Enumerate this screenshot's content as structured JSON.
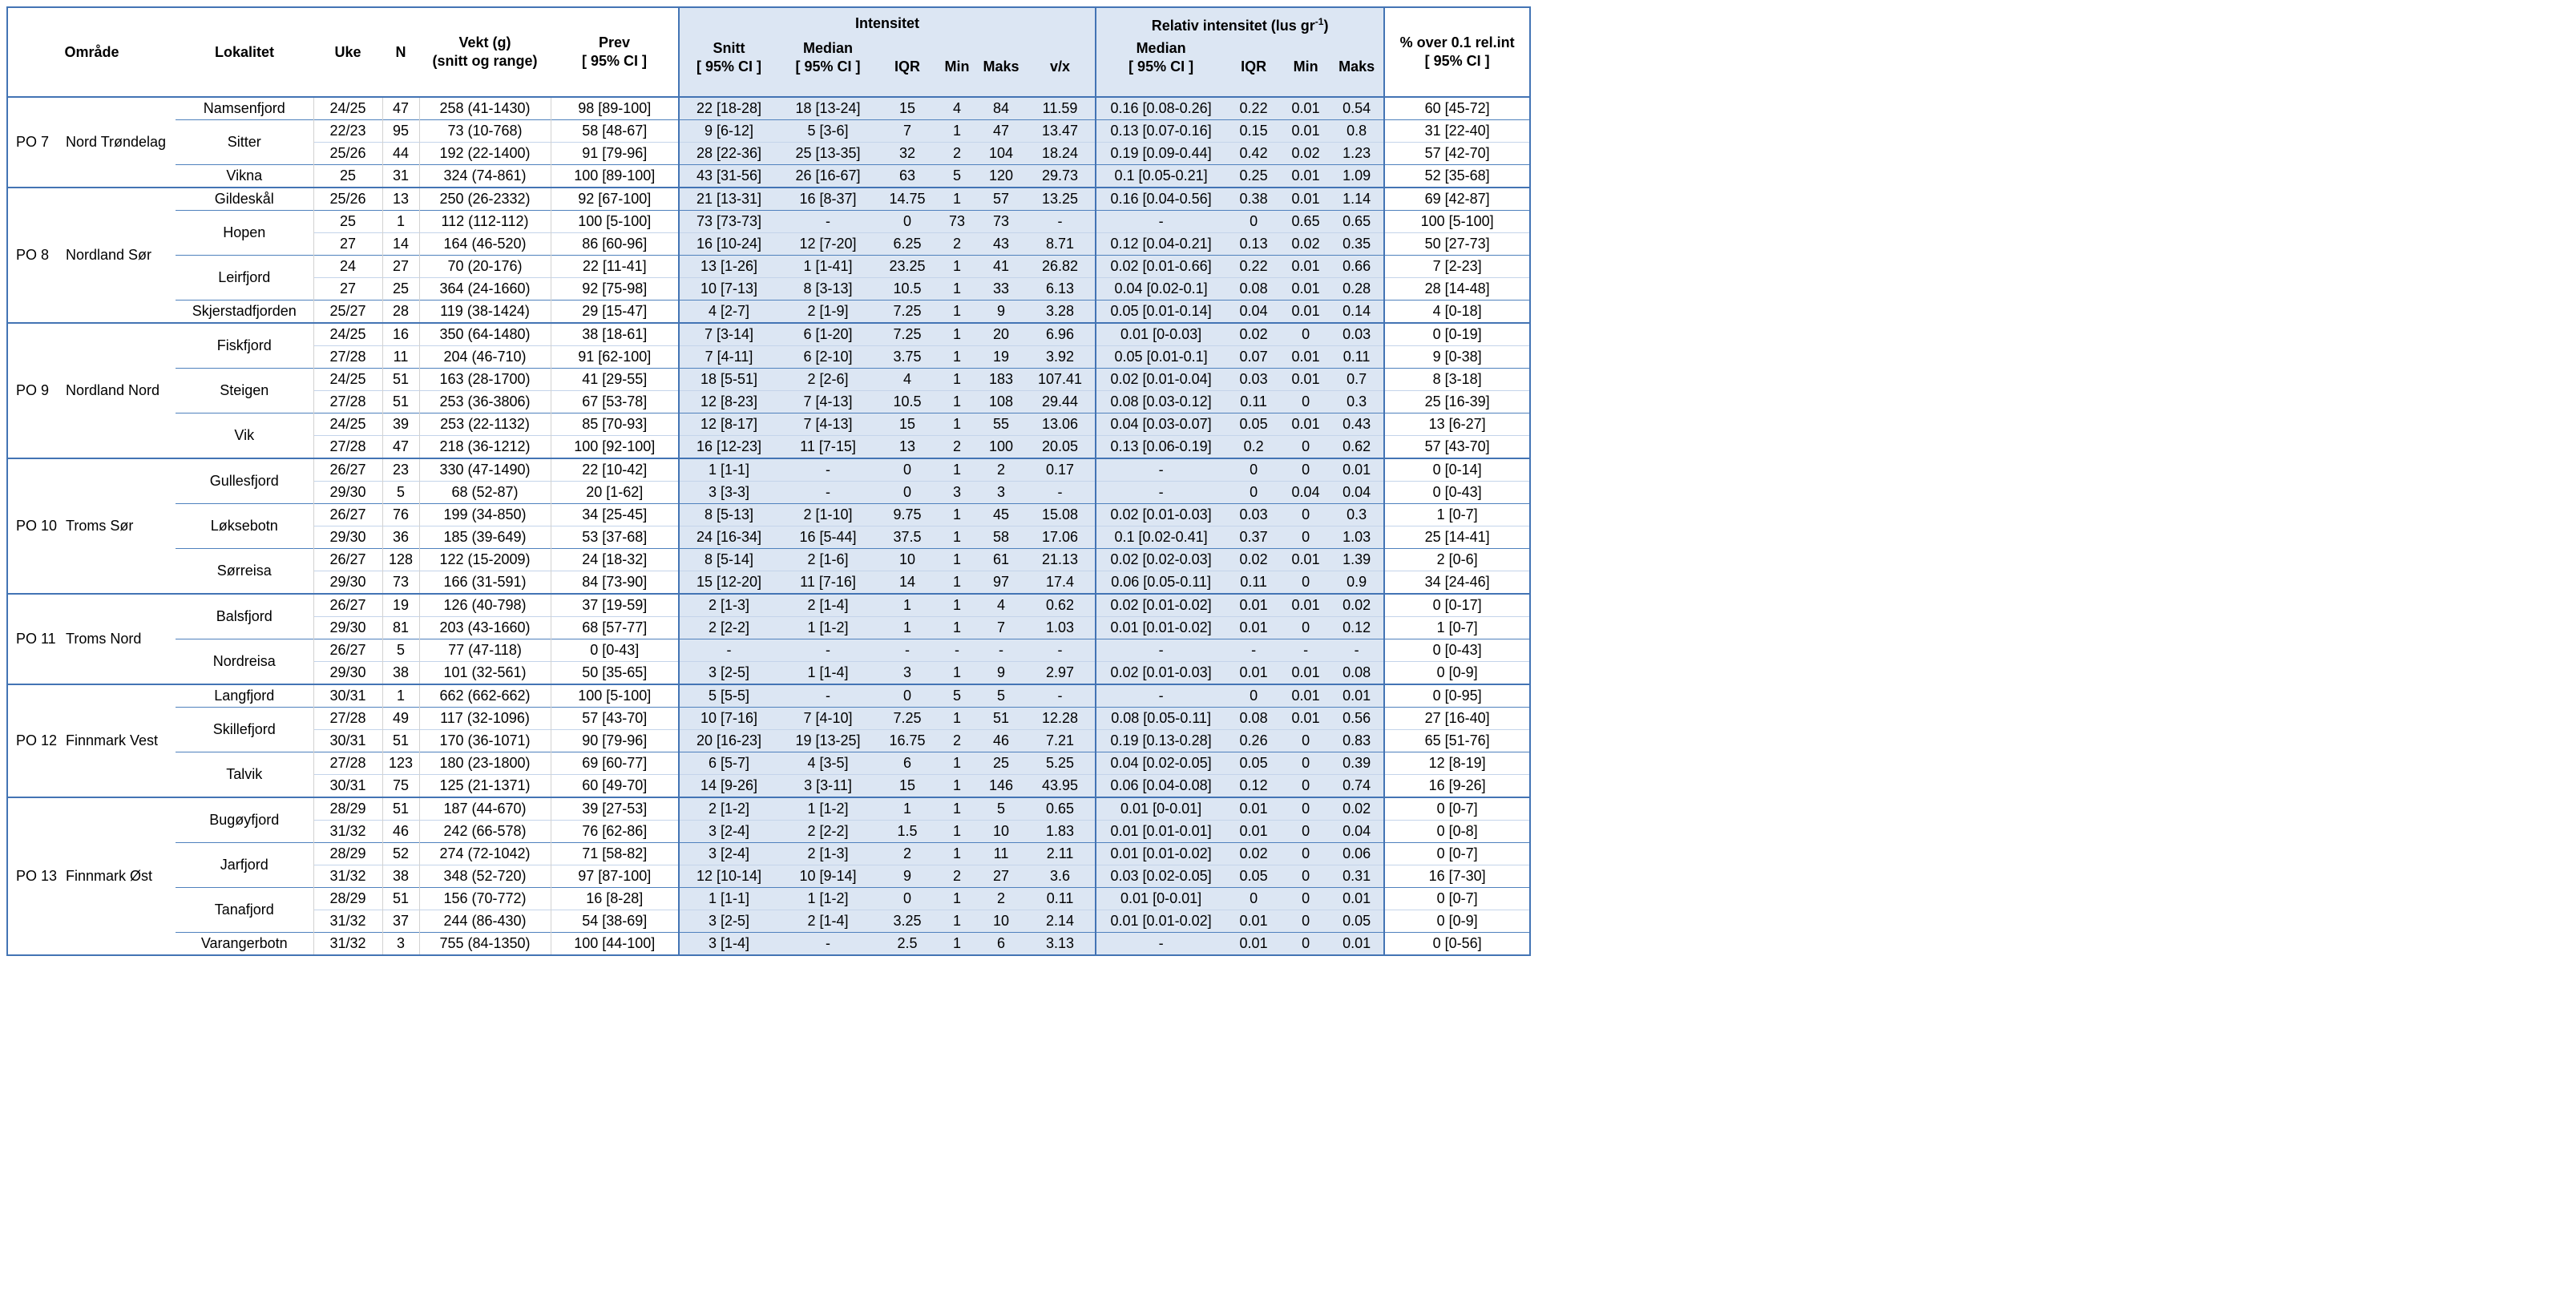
{
  "colors": {
    "region_fill": "#dce6f3",
    "border_strong": "#4374b4",
    "border_locality": "#4f81bd",
    "border_light_blue": "#c4d4ea",
    "border_light_gray": "#d2d2d2"
  },
  "table": {
    "headers": {
      "omrade": "Område",
      "lokalitet": "Lokalitet",
      "uke": "Uke",
      "n": "N",
      "vekt_line1": "Vekt (g)",
      "vekt_line2": "(snitt og range)",
      "prev_line1": "Prev",
      "prev_line2": "[ 95% CI ]",
      "intensitet_group": "Intensitet",
      "rel_group_prefix": "Relativ intensitet (lus gr",
      "rel_group_sup": "-1",
      "rel_group_suffix": ")",
      "snitt_line1": "Snitt",
      "snitt_line2": "[ 95% CI ]",
      "median_line1": "Median",
      "median_line2": "[ 95% CI ]",
      "iqr": "IQR",
      "min": "Min",
      "maks": "Maks",
      "vx": "v/x",
      "rel_median_line1": "Median",
      "rel_median_line2": "[ 95% CI ]",
      "rel_iqr": "IQR",
      "rel_min": "Min",
      "rel_maks": "Maks",
      "pct_line1": "% over 0.1 rel.int",
      "pct_line2": "[ 95% CI ]"
    },
    "col_keys": [
      "uke",
      "n",
      "vekt",
      "prev",
      "int-snitt",
      "int-median",
      "int-iqr",
      "int-min",
      "int-maks",
      "vx",
      "rel-median",
      "rel-iqr",
      "rel-min",
      "rel-maks",
      "pct-over"
    ],
    "groups": [
      {
        "po": "PO 7",
        "name": "Nord Trøndelag",
        "localities": [
          {
            "name": "Namsenfjord",
            "rows": [
              [
                "24/25",
                "47",
                "258 (41-1430)",
                "98 [89-100]",
                "22 [18-28]",
                "18 [13-24]",
                "15",
                "4",
                "84",
                "11.59",
                "0.16 [0.08-0.26]",
                "0.22",
                "0.01",
                "0.54",
                "60 [45-72]"
              ]
            ]
          },
          {
            "name": "Sitter",
            "rows": [
              [
                "22/23",
                "95",
                "73 (10-768)",
                "58 [48-67]",
                "9 [6-12]",
                "5 [3-6]",
                "7",
                "1",
                "47",
                "13.47",
                "0.13 [0.07-0.16]",
                "0.15",
                "0.01",
                "0.8",
                "31 [22-40]"
              ],
              [
                "25/26",
                "44",
                "192 (22-1400)",
                "91 [79-96]",
                "28 [22-36]",
                "25 [13-35]",
                "32",
                "2",
                "104",
                "18.24",
                "0.19 [0.09-0.44]",
                "0.42",
                "0.02",
                "1.23",
                "57 [42-70]"
              ]
            ]
          },
          {
            "name": "Vikna",
            "rows": [
              [
                "25",
                "31",
                "324 (74-861)",
                "100 [89-100]",
                "43 [31-56]",
                "26 [16-67]",
                "63",
                "5",
                "120",
                "29.73",
                "0.1 [0.05-0.21]",
                "0.25",
                "0.01",
                "1.09",
                "52 [35-68]"
              ]
            ]
          }
        ]
      },
      {
        "po": "PO 8",
        "name": "Nordland Sør",
        "localities": [
          {
            "name": "Gildeskål",
            "rows": [
              [
                "25/26",
                "13",
                "250 (26-2332)",
                "92 [67-100]",
                "21 [13-31]",
                "16 [8-37]",
                "14.75",
                "1",
                "57",
                "13.25",
                "0.16 [0.04-0.56]",
                "0.38",
                "0.01",
                "1.14",
                "69 [42-87]"
              ]
            ]
          },
          {
            "name": "Hopen",
            "rows": [
              [
                "25",
                "1",
                "112 (112-112)",
                "100 [5-100]",
                "73 [73-73]",
                "-",
                "0",
                "73",
                "73",
                "-",
                "-",
                "0",
                "0.65",
                "0.65",
                "100 [5-100]"
              ],
              [
                "27",
                "14",
                "164 (46-520)",
                "86 [60-96]",
                "16 [10-24]",
                "12 [7-20]",
                "6.25",
                "2",
                "43",
                "8.71",
                "0.12 [0.04-0.21]",
                "0.13",
                "0.02",
                "0.35",
                "50 [27-73]"
              ]
            ]
          },
          {
            "name": "Leirfjord",
            "rows": [
              [
                "24",
                "27",
                "70 (20-176)",
                "22 [11-41]",
                "13 [1-26]",
                "1 [1-41]",
                "23.25",
                "1",
                "41",
                "26.82",
                "0.02 [0.01-0.66]",
                "0.22",
                "0.01",
                "0.66",
                "7 [2-23]"
              ],
              [
                "27",
                "25",
                "364 (24-1660)",
                "92 [75-98]",
                "10 [7-13]",
                "8 [3-13]",
                "10.5",
                "1",
                "33",
                "6.13",
                "0.04 [0.02-0.1]",
                "0.08",
                "0.01",
                "0.28",
                "28 [14-48]"
              ]
            ]
          },
          {
            "name": "Skjerstadfjorden",
            "rows": [
              [
                "25/27",
                "28",
                "119 (38-1424)",
                "29 [15-47]",
                "4 [2-7]",
                "2 [1-9]",
                "7.25",
                "1",
                "9",
                "3.28",
                "0.05 [0.01-0.14]",
                "0.04",
                "0.01",
                "0.14",
                "4 [0-18]"
              ]
            ]
          }
        ]
      },
      {
        "po": "PO 9",
        "name": "Nordland Nord",
        "localities": [
          {
            "name": "Fiskfjord",
            "rows": [
              [
                "24/25",
                "16",
                "350 (64-1480)",
                "38 [18-61]",
                "7 [3-14]",
                "6 [1-20]",
                "7.25",
                "1",
                "20",
                "6.96",
                "0.01 [0-0.03]",
                "0.02",
                "0",
                "0.03",
                "0 [0-19]"
              ],
              [
                "27/28",
                "11",
                "204 (46-710)",
                "91 [62-100]",
                "7 [4-11]",
                "6 [2-10]",
                "3.75",
                "1",
                "19",
                "3.92",
                "0.05 [0.01-0.1]",
                "0.07",
                "0.01",
                "0.11",
                "9 [0-38]"
              ]
            ]
          },
          {
            "name": "Steigen",
            "rows": [
              [
                "24/25",
                "51",
                "163 (28-1700)",
                "41 [29-55]",
                "18 [5-51]",
                "2 [2-6]",
                "4",
                "1",
                "183",
                "107.41",
                "0.02 [0.01-0.04]",
                "0.03",
                "0.01",
                "0.7",
                "8 [3-18]"
              ],
              [
                "27/28",
                "51",
                "253 (36-3806)",
                "67 [53-78]",
                "12 [8-23]",
                "7 [4-13]",
                "10.5",
                "1",
                "108",
                "29.44",
                "0.08 [0.03-0.12]",
                "0.11",
                "0",
                "0.3",
                "25 [16-39]"
              ]
            ]
          },
          {
            "name": "Vik",
            "rows": [
              [
                "24/25",
                "39",
                "253 (22-1132)",
                "85 [70-93]",
                "12 [8-17]",
                "7 [4-13]",
                "15",
                "1",
                "55",
                "13.06",
                "0.04 [0.03-0.07]",
                "0.05",
                "0.01",
                "0.43",
                "13 [6-27]"
              ],
              [
                "27/28",
                "47",
                "218 (36-1212)",
                "100 [92-100]",
                "16 [12-23]",
                "11 [7-15]",
                "13",
                "2",
                "100",
                "20.05",
                "0.13 [0.06-0.19]",
                "0.2",
                "0",
                "0.62",
                "57 [43-70]"
              ]
            ]
          }
        ]
      },
      {
        "po": "PO 10",
        "name": "Troms Sør",
        "localities": [
          {
            "name": "Gullesfjord",
            "rows": [
              [
                "26/27",
                "23",
                "330 (47-1490)",
                "22 [10-42]",
                "1 [1-1]",
                "-",
                "0",
                "1",
                "2",
                "0.17",
                "-",
                "0",
                "0",
                "0.01",
                "0 [0-14]"
              ],
              [
                "29/30",
                "5",
                "68 (52-87)",
                "20 [1-62]",
                "3 [3-3]",
                "-",
                "0",
                "3",
                "3",
                "-",
                "-",
                "0",
                "0.04",
                "0.04",
                "0 [0-43]"
              ]
            ]
          },
          {
            "name": "Løksebotn",
            "rows": [
              [
                "26/27",
                "76",
                "199 (34-850)",
                "34 [25-45]",
                "8 [5-13]",
                "2 [1-10]",
                "9.75",
                "1",
                "45",
                "15.08",
                "0.02 [0.01-0.03]",
                "0.03",
                "0",
                "0.3",
                "1 [0-7]"
              ],
              [
                "29/30",
                "36",
                "185 (39-649)",
                "53 [37-68]",
                "24 [16-34]",
                "16 [5-44]",
                "37.5",
                "1",
                "58",
                "17.06",
                "0.1 [0.02-0.41]",
                "0.37",
                "0",
                "1.03",
                "25 [14-41]"
              ]
            ]
          },
          {
            "name": "Sørreisa",
            "rows": [
              [
                "26/27",
                "128",
                "122 (15-2009)",
                "24 [18-32]",
                "8 [5-14]",
                "2 [1-6]",
                "10",
                "1",
                "61",
                "21.13",
                "0.02 [0.02-0.03]",
                "0.02",
                "0.01",
                "1.39",
                "2 [0-6]"
              ],
              [
                "29/30",
                "73",
                "166 (31-591)",
                "84 [73-90]",
                "15 [12-20]",
                "11 [7-16]",
                "14",
                "1",
                "97",
                "17.4",
                "0.06 [0.05-0.11]",
                "0.11",
                "0",
                "0.9",
                "34 [24-46]"
              ]
            ]
          }
        ]
      },
      {
        "po": "PO 11",
        "name": "Troms Nord",
        "localities": [
          {
            "name": "Balsfjord",
            "rows": [
              [
                "26/27",
                "19",
                "126 (40-798)",
                "37 [19-59]",
                "2 [1-3]",
                "2 [1-4]",
                "1",
                "1",
                "4",
                "0.62",
                "0.02 [0.01-0.02]",
                "0.01",
                "0.01",
                "0.02",
                "0 [0-17]"
              ],
              [
                "29/30",
                "81",
                "203 (43-1660)",
                "68 [57-77]",
                "2 [2-2]",
                "1 [1-2]",
                "1",
                "1",
                "7",
                "1.03",
                "0.01 [0.01-0.02]",
                "0.01",
                "0",
                "0.12",
                "1 [0-7]"
              ]
            ]
          },
          {
            "name": "Nordreisa",
            "rows": [
              [
                "26/27",
                "5",
                "77 (47-118)",
                "0 [0-43]",
                "-",
                "-",
                "-",
                "-",
                "-",
                "-",
                "-",
                "-",
                "-",
                "-",
                "0 [0-43]"
              ],
              [
                "29/30",
                "38",
                "101 (32-561)",
                "50 [35-65]",
                "3 [2-5]",
                "1 [1-4]",
                "3",
                "1",
                "9",
                "2.97",
                "0.02 [0.01-0.03]",
                "0.01",
                "0.01",
                "0.08",
                "0 [0-9]"
              ]
            ]
          }
        ]
      },
      {
        "po": "PO 12",
        "name": "Finnmark Vest",
        "localities": [
          {
            "name": "Langfjord",
            "rows": [
              [
                "30/31",
                "1",
                "662 (662-662)",
                "100 [5-100]",
                "5 [5-5]",
                "-",
                "0",
                "5",
                "5",
                "-",
                "-",
                "0",
                "0.01",
                "0.01",
                "0 [0-95]"
              ]
            ]
          },
          {
            "name": "Skillefjord",
            "rows": [
              [
                "27/28",
                "49",
                "117 (32-1096)",
                "57 [43-70]",
                "10 [7-16]",
                "7 [4-10]",
                "7.25",
                "1",
                "51",
                "12.28",
                "0.08 [0.05-0.11]",
                "0.08",
                "0.01",
                "0.56",
                "27 [16-40]"
              ],
              [
                "30/31",
                "51",
                "170 (36-1071)",
                "90 [79-96]",
                "20 [16-23]",
                "19 [13-25]",
                "16.75",
                "2",
                "46",
                "7.21",
                "0.19 [0.13-0.28]",
                "0.26",
                "0",
                "0.83",
                "65 [51-76]"
              ]
            ]
          },
          {
            "name": "Talvik",
            "rows": [
              [
                "27/28",
                "123",
                "180 (23-1800)",
                "69 [60-77]",
                "6 [5-7]",
                "4 [3-5]",
                "6",
                "1",
                "25",
                "5.25",
                "0.04 [0.02-0.05]",
                "0.05",
                "0",
                "0.39",
                "12 [8-19]"
              ],
              [
                "30/31",
                "75",
                "125 (21-1371)",
                "60 [49-70]",
                "14 [9-26]",
                "3 [3-11]",
                "15",
                "1",
                "146",
                "43.95",
                "0.06 [0.04-0.08]",
                "0.12",
                "0",
                "0.74",
                "16 [9-26]"
              ]
            ]
          }
        ]
      },
      {
        "po": "PO 13",
        "name": "Finnmark Øst",
        "localities": [
          {
            "name": "Bugøyfjord",
            "rows": [
              [
                "28/29",
                "51",
                "187 (44-670)",
                "39 [27-53]",
                "2 [1-2]",
                "1 [1-2]",
                "1",
                "1",
                "5",
                "0.65",
                "0.01 [0-0.01]",
                "0.01",
                "0",
                "0.02",
                "0 [0-7]"
              ],
              [
                "31/32",
                "46",
                "242 (66-578)",
                "76 [62-86]",
                "3 [2-4]",
                "2 [2-2]",
                "1.5",
                "1",
                "10",
                "1.83",
                "0.01 [0.01-0.01]",
                "0.01",
                "0",
                "0.04",
                "0 [0-8]"
              ]
            ]
          },
          {
            "name": "Jarfjord",
            "rows": [
              [
                "28/29",
                "52",
                "274 (72-1042)",
                "71 [58-82]",
                "3 [2-4]",
                "2 [1-3]",
                "2",
                "1",
                "11",
                "2.11",
                "0.01 [0.01-0.02]",
                "0.02",
                "0",
                "0.06",
                "0 [0-7]"
              ],
              [
                "31/32",
                "38",
                "348 (52-720)",
                "97 [87-100]",
                "12 [10-14]",
                "10 [9-14]",
                "9",
                "2",
                "27",
                "3.6",
                "0.03 [0.02-0.05]",
                "0.05",
                "0",
                "0.31",
                "16 [7-30]"
              ]
            ]
          },
          {
            "name": "Tanafjord",
            "rows": [
              [
                "28/29",
                "51",
                "156 (70-772)",
                "16 [8-28]",
                "1 [1-1]",
                "1 [1-2]",
                "0",
                "1",
                "2",
                "0.11",
                "0.01 [0-0.01]",
                "0",
                "0",
                "0.01",
                "0 [0-7]"
              ],
              [
                "31/32",
                "37",
                "244 (86-430)",
                "54 [38-69]",
                "3 [2-5]",
                "2 [1-4]",
                "3.25",
                "1",
                "10",
                "2.14",
                "0.01 [0.01-0.02]",
                "0.01",
                "0",
                "0.05",
                "0 [0-9]"
              ]
            ]
          },
          {
            "name": "Varangerbotn",
            "rows": [
              [
                "31/32",
                "3",
                "755 (84-1350)",
                "100 [44-100]",
                "3 [1-4]",
                "-",
                "2.5",
                "1",
                "6",
                "3.13",
                "-",
                "0.01",
                "0",
                "0.01",
                "0 [0-56]"
              ]
            ]
          }
        ]
      }
    ]
  }
}
